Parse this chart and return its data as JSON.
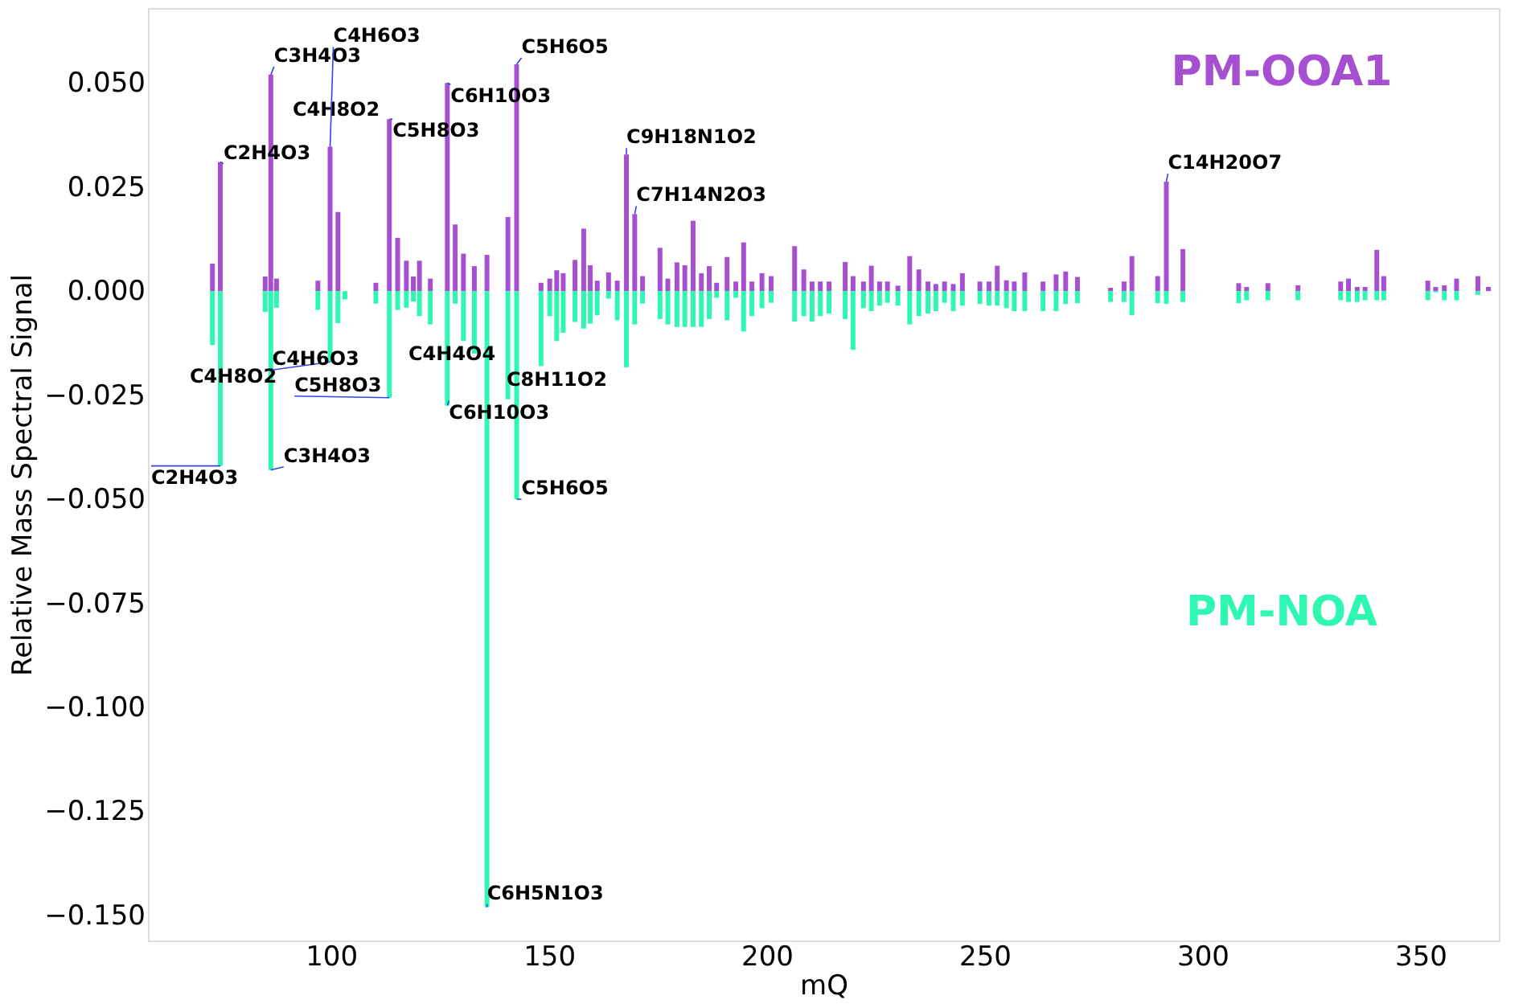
{
  "chart_data": {
    "type": "bar",
    "xlabel": "mQ",
    "ylabel": "Relative Mass Spectral Signal",
    "x": [
      72.8,
      74.6,
      84.9,
      86.2,
      87.5,
      97.0,
      99.8,
      101.6,
      103.2,
      110.3,
      113.4,
      115.3,
      117.3,
      118.9,
      120.3,
      122.8,
      126.7,
      128.5,
      130.4,
      132.9,
      135.8,
      140.6,
      142.6,
      148.2,
      150.2,
      151.8,
      153.3,
      156.0,
      158.0,
      159.5,
      161.1,
      163.7,
      165.7,
      167.8,
      169.7,
      171.5,
      175.5,
      177.3,
      179.4,
      181.2,
      183.1,
      185.0,
      186.8,
      188.5,
      190.9,
      192.9,
      194.7,
      196.6,
      198.9,
      201.0,
      206.4,
      208.5,
      210.4,
      212.3,
      214.3,
      218.0,
      219.8,
      222.2,
      224.0,
      225.9,
      227.7,
      230.1,
      232.8,
      234.9,
      237.0,
      238.8,
      240.8,
      242.8,
      244.9,
      248.9,
      251.0,
      252.9,
      255.0,
      256.8,
      259.2,
      263.4,
      266.4,
      268.6,
      271.3,
      278.9,
      282.0,
      283.8,
      289.7,
      291.7,
      295.5,
      308.3,
      310.1,
      315.0,
      321.9,
      331.7,
      333.5,
      335.5,
      337.3,
      340.0,
      341.6,
      351.7,
      353.5,
      355.5,
      358.3,
      363.2,
      365.6
    ],
    "series": [
      {
        "name": "PM-OOA1",
        "color": "#a64fd1",
        "values": [
          0.0066,
          0.031,
          0.0035,
          0.052,
          0.003,
          0.0025,
          0.0347,
          0.019,
          null,
          0.002,
          0.0413,
          0.0128,
          0.0073,
          0.0035,
          0.0073,
          0.003,
          0.05,
          0.016,
          0.009,
          0.006,
          0.0087,
          0.0178,
          0.0545,
          0.002,
          0.003,
          0.005,
          0.0043,
          0.0075,
          0.015,
          0.0062,
          0.0025,
          0.0045,
          0.0025,
          0.0328,
          0.0185,
          0.0036,
          0.0104,
          0.003,
          0.0069,
          0.0062,
          0.0169,
          0.0043,
          0.006,
          0.002,
          0.0082,
          0.0023,
          0.0117,
          0.0023,
          0.0043,
          0.0036,
          0.0108,
          0.0052,
          0.0023,
          0.0023,
          0.0023,
          0.007,
          0.0036,
          0.0023,
          0.0061,
          0.0023,
          0.0023,
          0.0013,
          0.0084,
          0.0052,
          0.0023,
          0.0017,
          0.0023,
          0.0017,
          0.0043,
          0.0023,
          0.0023,
          0.0061,
          0.0026,
          0.0023,
          0.0045,
          0.0023,
          0.004,
          0.0047,
          0.0034,
          0.0008,
          0.0023,
          0.0084,
          0.0036,
          0.0263,
          0.0101,
          0.0019,
          0.001,
          0.0019,
          0.0014,
          0.0023,
          0.003,
          0.001,
          0.001,
          0.0099,
          0.0036,
          0.0025,
          0.001,
          0.0014,
          0.003,
          0.0036,
          0.001
        ]
      },
      {
        "name": "PM-NOA",
        "color": "#2ef7b0",
        "values": [
          -0.013,
          -0.042,
          -0.005,
          -0.043,
          -0.004,
          -0.0045,
          -0.017,
          -0.0077,
          -0.002,
          -0.003,
          -0.0256,
          -0.0045,
          -0.004,
          -0.0025,
          -0.006,
          -0.008,
          -0.0275,
          -0.003,
          -0.012,
          -0.015,
          -0.148,
          -0.026,
          -0.05,
          -0.018,
          -0.006,
          -0.012,
          -0.01,
          -0.0074,
          -0.009,
          -0.0078,
          -0.0058,
          -0.0018,
          -0.007,
          -0.0183,
          -0.008,
          -0.003,
          -0.0067,
          -0.008,
          -0.0086,
          -0.0086,
          -0.0086,
          -0.0086,
          -0.0067,
          -0.0016,
          -0.007,
          -0.0016,
          -0.0097,
          -0.006,
          -0.0041,
          -0.0028,
          -0.0073,
          -0.006,
          -0.0073,
          -0.006,
          -0.0054,
          -0.0067,
          -0.0141,
          -0.0041,
          -0.0048,
          -0.0035,
          -0.0028,
          -0.0035,
          -0.008,
          -0.006,
          -0.0054,
          -0.0048,
          -0.0028,
          -0.0048,
          -0.0035,
          -0.0031,
          -0.0035,
          -0.0035,
          -0.0041,
          -0.0048,
          -0.0048,
          -0.0048,
          -0.0048,
          -0.0031,
          -0.0029,
          -0.0026,
          -0.0026,
          -0.0058,
          -0.0029,
          -0.0031,
          -0.0026,
          -0.0029,
          -0.0022,
          -0.0022,
          -0.0022,
          -0.0022,
          -0.0026,
          -0.0026,
          -0.0022,
          -0.0022,
          -0.0022,
          -0.0022,
          -0.0003,
          -0.0022,
          -0.0022,
          -0.0009,
          null
        ]
      }
    ],
    "xlim": [
      58,
      368
    ],
    "xticks": [
      100,
      150,
      200,
      250,
      300,
      350
    ],
    "ylim": [
      -0.156,
      0.068
    ],
    "yticks": [
      {
        "value": 0.05,
        "label": "0.050"
      },
      {
        "value": 0.025,
        "label": "0.025"
      },
      {
        "value": 0,
        "label": "0.000"
      },
      {
        "value": -0.025,
        "label": "−0.025"
      },
      {
        "value": -0.05,
        "label": "−0.050"
      },
      {
        "value": -0.075,
        "label": "−0.075"
      },
      {
        "value": -0.1,
        "label": "−0.100"
      },
      {
        "value": -0.125,
        "label": "−0.125"
      },
      {
        "value": -0.15,
        "label": "−0.150"
      }
    ],
    "grid": false,
    "stacked": true,
    "annotations": [
      {
        "text": "C2H4O3",
        "x": 74.6,
        "y": 0.031
      },
      {
        "text": "C3H4O3",
        "x": 86.2,
        "y": 0.052
      },
      "C4H8O2",
      {
        "text": "C4H6O3",
        "x": 99.8,
        "y": 0.0347
      },
      {
        "text": "C5H8O3",
        "x": 113.4,
        "y": 0.0413
      },
      {
        "text": "C6H10O3",
        "x": 126.7,
        "y": 0.05
      },
      {
        "text": "C5H6O5",
        "x": 142.6,
        "y": 0.0545
      },
      {
        "text": "C9H18N1O2",
        "x": 167.8,
        "y": 0.0328
      },
      {
        "text": "C7H14N2O3",
        "x": 169.7,
        "y": 0.0185
      },
      {
        "text": "C14H20O7",
        "x": 291.7,
        "y": 0.0263
      },
      {
        "text": "C2H4O3",
        "x": 74.6,
        "y": -0.042
      },
      "C4H8O2",
      {
        "text": "C3H4O3",
        "x": 86.2,
        "y": -0.043
      },
      {
        "text": "C4H6O3",
        "x": 99.8,
        "y": -0.017
      },
      {
        "text": "C5H8O3",
        "x": 113.4,
        "y": -0.0256
      },
      "C4H4O4",
      "C8H11O2",
      {
        "text": "C6H10O3",
        "x": 126.7,
        "y": -0.0275
      },
      {
        "text": "C5H6O5",
        "x": 142.6,
        "y": -0.05
      },
      {
        "text": "C6H5N1O3",
        "x": 135.8,
        "y": -0.148
      }
    ]
  }
}
